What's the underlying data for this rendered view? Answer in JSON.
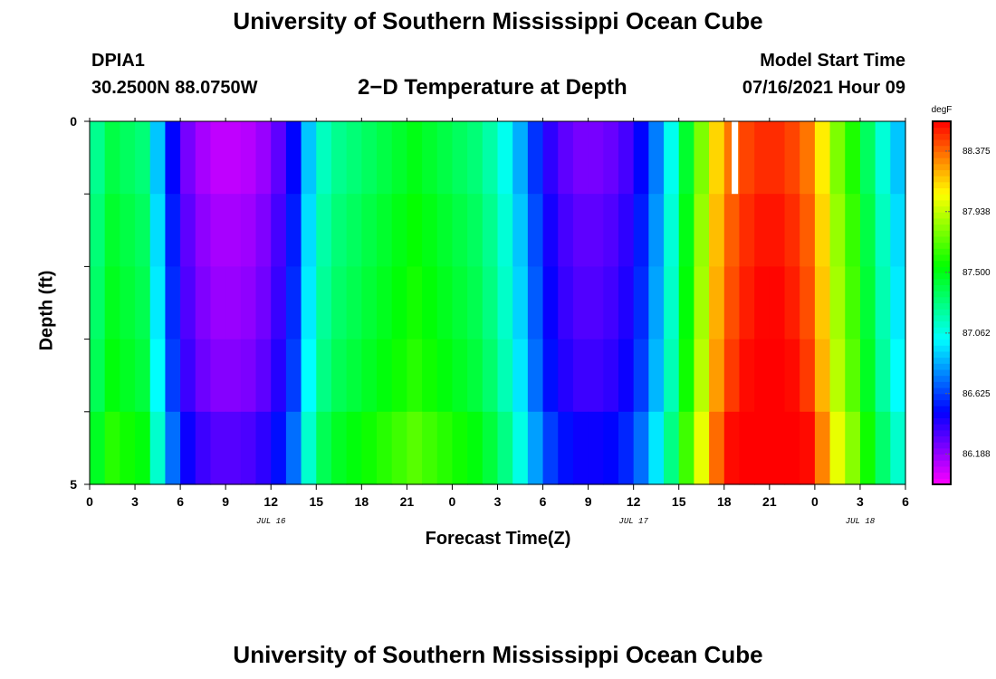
{
  "header": {
    "title": "University of Southern Mississippi Ocean Cube",
    "station": "DPIA1",
    "coords": "30.2500N  88.0750W",
    "subtitle": "2−D Temperature at Depth",
    "model_start_label": "Model Start Time",
    "model_start_value": "07/16/2021 Hour 09"
  },
  "footer": {
    "title": "University of Southern Mississippi Ocean Cube"
  },
  "chart_data": {
    "type": "heatmap",
    "title": "2−D Temperature at Depth",
    "xlabel": "Forecast Time(Z)",
    "ylabel": "Depth (ft)",
    "x_start": "07/16/2021 Hour 00",
    "x_step_hours": 1,
    "xlim": [
      0,
      54
    ],
    "ylim": [
      0,
      5
    ],
    "y_inverted": true,
    "x_tick_labels": [
      "0",
      "3",
      "6",
      "9",
      "12",
      "15",
      "18",
      "21",
      "0",
      "3",
      "6",
      "9",
      "12",
      "15",
      "18",
      "21",
      "0",
      "3",
      "6"
    ],
    "y_tick_labels": [
      "0",
      "5"
    ],
    "date_labels": [
      {
        "text": "JUL 16",
        "x": 12
      },
      {
        "text": "JUL 17",
        "x": 36
      },
      {
        "text": "JUL 18",
        "x": 51
      }
    ],
    "colorbar": {
      "unit": "degF",
      "min": 85.97,
      "max": 88.59,
      "tick_labels": [
        "86.188",
        "86.625",
        "87.062",
        "87.500",
        "87.938",
        "88.375"
      ],
      "tick_values": [
        86.188,
        86.625,
        87.062,
        87.5,
        87.938,
        88.375
      ]
    },
    "depth_layers": [
      0,
      1,
      2,
      3,
      4
    ],
    "column_temperatures": [
      87.25,
      87.4,
      87.35,
      87.3,
      86.9,
      86.5,
      86.25,
      86.15,
      86.1,
      86.1,
      86.12,
      86.18,
      86.3,
      86.5,
      86.9,
      87.15,
      87.25,
      87.3,
      87.35,
      87.4,
      87.45,
      87.5,
      87.45,
      87.4,
      87.35,
      87.3,
      87.2,
      87.05,
      86.85,
      86.6,
      86.4,
      86.3,
      86.25,
      86.25,
      86.28,
      86.35,
      86.5,
      86.75,
      87.05,
      87.45,
      87.8,
      88.15,
      88.35,
      88.45,
      88.5,
      88.5,
      88.45,
      88.35,
      88.1,
      87.8,
      87.6,
      87.35,
      87.1,
      86.9
    ],
    "depth_offsets": [
      0,
      0.05,
      0.08,
      0.12,
      0.22
    ],
    "missing_cell": {
      "x": 42.5,
      "depth_layer": 0
    }
  }
}
